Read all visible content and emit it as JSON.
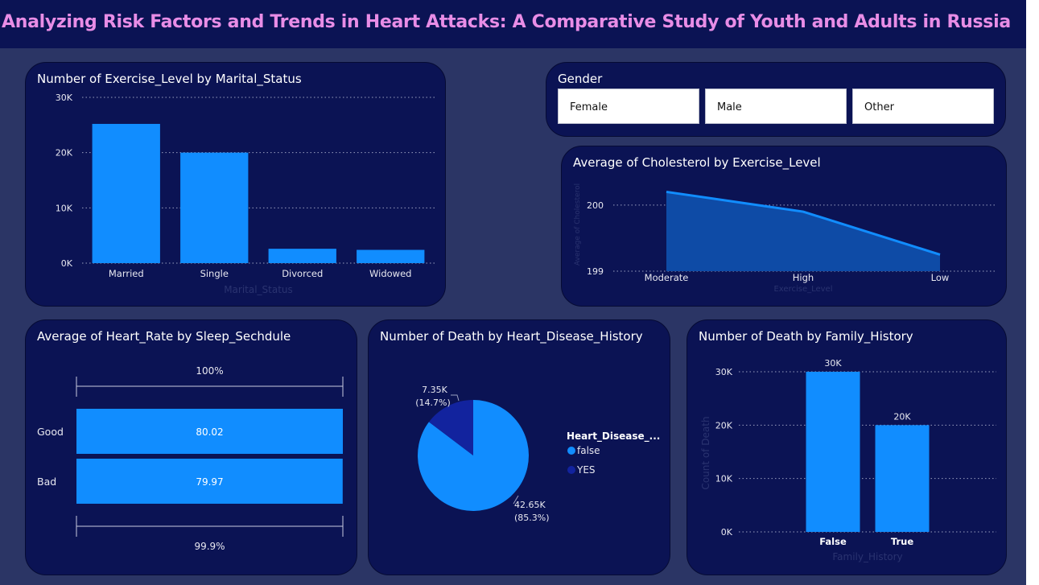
{
  "page": {
    "title": "Analyzing Risk Factors and Trends in Heart Attacks: A Comparative Study of Youth and Adults in Russia"
  },
  "colors": {
    "bar": "#118dff",
    "dark_series": "#12239e",
    "card_bg": "#0b1354",
    "title": "#e88de6"
  },
  "slicer": {
    "title": "Gender",
    "options": [
      "Female",
      "Male",
      "Other"
    ]
  },
  "charts": {
    "exercise": {
      "title": "Number of Exercise_Level by Marital_Status"
    },
    "cholesterol": {
      "title": "Average of Cholesterol by Exercise_Level"
    },
    "heart_rate": {
      "title": "Average of Heart_Rate by Sleep_Sechdule"
    },
    "death_disease": {
      "title": "Number of Death by Heart_Disease_History"
    },
    "death_family": {
      "title": "Number of Death by Family_History"
    }
  },
  "chart_data": [
    {
      "id": "exercise",
      "type": "bar",
      "title": "Number of Exercise_Level by Marital_Status",
      "categories": [
        "Married",
        "Single",
        "Divorced",
        "Widowed"
      ],
      "values": [
        25200,
        20000,
        2600,
        2400
      ],
      "xlabel": "Marital_Status",
      "ylabel": "",
      "ylim": [
        0,
        30000
      ],
      "yticks": [
        0,
        10000,
        20000,
        30000
      ],
      "ytick_labels": [
        "0K",
        "10K",
        "20K",
        "30K"
      ],
      "grid": true
    },
    {
      "id": "cholesterol",
      "type": "area",
      "title": "Average of Cholesterol by Exercise_Level",
      "categories": [
        "Moderate",
        "High",
        "Low"
      ],
      "values": [
        200.2,
        199.9,
        199.25
      ],
      "xlabel": "Exercise_Level",
      "ylabel": "Average of Cholesterol",
      "ylim": [
        199,
        200.4
      ],
      "yticks": [
        199,
        200
      ],
      "ytick_labels": [
        "199",
        "200"
      ],
      "grid": true
    },
    {
      "id": "heart_rate",
      "type": "bar",
      "title": "Average of Heart_Rate by Sleep_Sechdule",
      "categories": [
        "Good",
        "Bad"
      ],
      "values": [
        80.02,
        79.97
      ],
      "value_labels": [
        "80.02",
        "79.97"
      ],
      "top_label": "100%",
      "bottom_label": "99.9%"
    },
    {
      "id": "death_disease",
      "type": "pie",
      "title": "Number of Death by Heart_Disease_History",
      "legend_title": "Heart_Disease_...",
      "legend_position": "right",
      "slices": [
        {
          "name": "false",
          "value": 42650,
          "label": "42.65K",
          "pct": "(85.3%)",
          "color": "#118dff"
        },
        {
          "name": "YES",
          "value": 7350,
          "label": "7.35K",
          "pct": "(14.7%)",
          "color": "#12239e"
        }
      ]
    },
    {
      "id": "death_family",
      "type": "bar",
      "title": "Number of Death by Family_History",
      "categories": [
        "False",
        "True"
      ],
      "values": [
        30000,
        20000
      ],
      "value_labels": [
        "30K",
        "20K"
      ],
      "xlabel": "Family_History",
      "ylabel": "Count of Death",
      "ylim": [
        0,
        30000
      ],
      "yticks": [
        0,
        10000,
        20000,
        30000
      ],
      "ytick_labels": [
        "0K",
        "10K",
        "20K",
        "30K"
      ],
      "grid": true
    }
  ]
}
